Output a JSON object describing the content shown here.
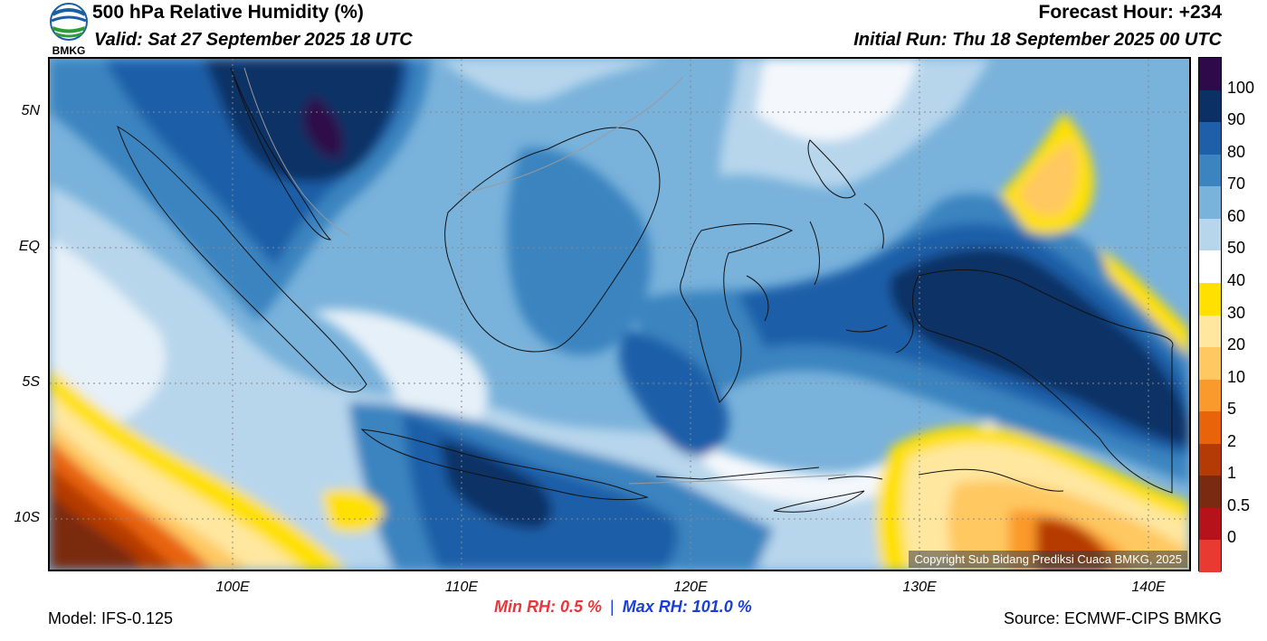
{
  "header": {
    "title": "500 hPa Relative Humidity (%)",
    "valid": "Valid: Sat 27 September 2025 18 UTC",
    "forecast_hour": "Forecast Hour: +234",
    "initial_run": "Initial Run: Thu 18 September 2025 00 UTC",
    "logo_text": "BMKG"
  },
  "map": {
    "lat_ticks": [
      "5N",
      "EQ",
      "5S",
      "10S"
    ],
    "lon_ticks": [
      "100E",
      "110E",
      "120E",
      "130E",
      "140E"
    ],
    "copyright": "Copyright Sub Bidang Prediksi Cuaca BMKG, 2025"
  },
  "colorbar": {
    "labels": [
      "100",
      "90",
      "80",
      "70",
      "60",
      "50",
      "40",
      "30",
      "20",
      "10",
      "5",
      "2",
      "1",
      "0.5",
      "0"
    ],
    "colors": [
      "#2e0a4a",
      "#0b3066",
      "#1f5ea8",
      "#3b84c0",
      "#79b2db",
      "#b7d6ec",
      "#ffffff",
      "#ffe000",
      "#ffe7a0",
      "#ffc860",
      "#fb9a2c",
      "#e8630a",
      "#b53b06",
      "#7a2a10",
      "#b5121b",
      "#e83a30"
    ]
  },
  "footer": {
    "model": "Model: IFS-0.125",
    "min_rh": "Min RH:   0.5 %",
    "separator": "|",
    "max_rh": "Max RH: 101.0 %",
    "source": "Source: ECMWF-CIPS BMKG"
  }
}
